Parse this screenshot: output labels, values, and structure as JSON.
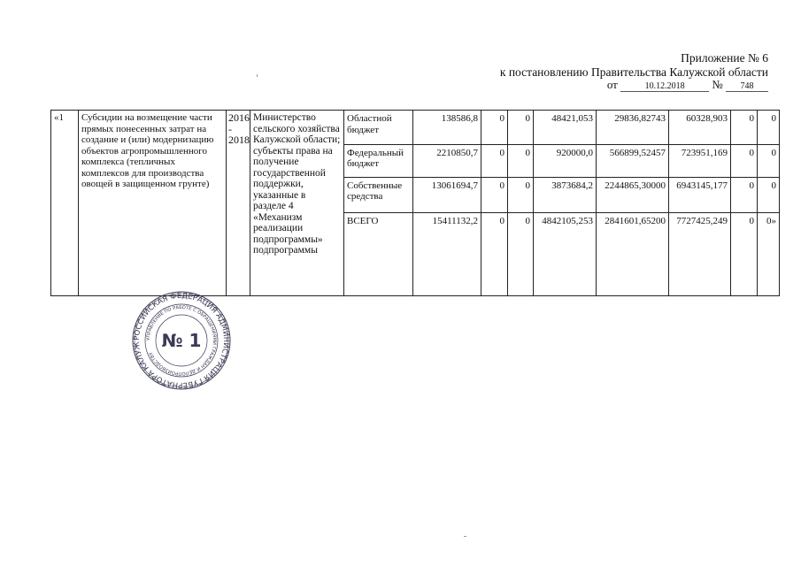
{
  "header": {
    "appendix": "Приложение № 6",
    "resolution": "к постановлению Правительства Калужской области",
    "date_prefix": "от",
    "date": "10.12.2018",
    "number_prefix": "№",
    "number": "748"
  },
  "table": {
    "row_number": "«1",
    "measure": "Субсидии на возмещение части прямых понесенных затрат на  создание и (или) модернизацию объектов агропромышленного комплекса (тепличных комплексов для производства овощей в защищенном грунте)",
    "period": "2016 - 2018",
    "executors": "Министерство сельского хозяйства Калужской области; субъекты права на получение государственной поддержки, указанные в разделе 4 «Механизм реализации подпрограммы» подпрограммы",
    "rows": [
      {
        "source": "Областной бюджет",
        "values": [
          "138586,8",
          "0",
          "0",
          "48421,053",
          "29836,82743",
          "60328,903",
          "0",
          "0"
        ]
      },
      {
        "source": "Федеральный бюджет",
        "values": [
          "2210850,7",
          "0",
          "0",
          "920000,0",
          "566899,52457",
          "723951,169",
          "0",
          "0"
        ]
      },
      {
        "source": "Собственные средства",
        "values": [
          "13061694,7",
          "0",
          "0",
          "3873684,2",
          "2244865,30000",
          "6943145,177",
          "0",
          "0"
        ]
      },
      {
        "source": "ВСЕГО",
        "values": [
          "15411132,2",
          "0",
          "0",
          "4842105,253",
          "2841601,65200",
          "7727425,249",
          "0",
          "0»"
        ]
      }
    ]
  },
  "seal": {
    "outer_text": "РОССИЙСКАЯ ФЕДЕРАЦИЯ АДМИНИСТРАЦИЯ ГУБЕРНАТОРА КАЛУЖСКОЙ ОБЛАСТИ",
    "inner_text": "УПРАВЛЕНИЕ ПО РАБОТЕ С ОБРАЩЕНИЯМИ ГРАЖДАН И ДЕЛОПРОИЗВОДСТВУ",
    "center_text": "№ 1",
    "color": "#3a3a55"
  }
}
